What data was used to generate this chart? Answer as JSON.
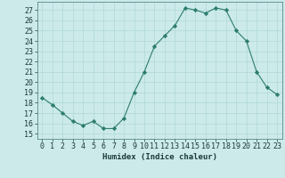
{
  "x": [
    0,
    1,
    2,
    3,
    4,
    5,
    6,
    7,
    8,
    9,
    10,
    11,
    12,
    13,
    14,
    15,
    16,
    17,
    18,
    19,
    20,
    21,
    22,
    23
  ],
  "y": [
    18.5,
    17.8,
    17.0,
    16.2,
    15.8,
    16.2,
    15.5,
    15.5,
    16.5,
    19.0,
    21.0,
    23.5,
    24.5,
    25.5,
    27.2,
    27.0,
    26.7,
    27.2,
    27.0,
    25.0,
    24.0,
    21.0,
    19.5,
    18.8
  ],
  "line_color": "#2d7d6e",
  "marker": "D",
  "marker_size": 2.2,
  "bg_color": "#cceaea",
  "grid_color": "#b0d8d8",
  "xlabel": "Humidex (Indice chaleur)",
  "ylabel_ticks": [
    15,
    16,
    17,
    18,
    19,
    20,
    21,
    22,
    23,
    24,
    25,
    26,
    27
  ],
  "xlim": [
    -0.5,
    23.5
  ],
  "ylim": [
    14.5,
    27.8
  ],
  "xticks": [
    0,
    1,
    2,
    3,
    4,
    5,
    6,
    7,
    8,
    9,
    10,
    11,
    12,
    13,
    14,
    15,
    16,
    17,
    18,
    19,
    20,
    21,
    22,
    23
  ],
  "xtick_labels": [
    "0",
    "1",
    "2",
    "3",
    "4",
    "5",
    "6",
    "7",
    "8",
    "9",
    "10",
    "11",
    "12",
    "13",
    "14",
    "15",
    "16",
    "17",
    "18",
    "19",
    "20",
    "21",
    "22",
    "23"
  ],
  "label_fontsize": 6.5,
  "tick_fontsize": 6.0,
  "line_width": 0.8
}
